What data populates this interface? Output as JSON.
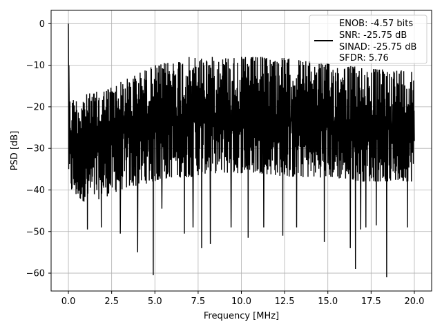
{
  "chart_data": {
    "type": "line",
    "xlabel": "Frequency [MHz]",
    "ylabel": "PSD [dB]",
    "xlim": [
      -1,
      21
    ],
    "ylim": [
      -64.3,
      3.2
    ],
    "grid": true,
    "legend_placement": "top-right",
    "x_ticks": [
      0.0,
      2.5,
      5.0,
      7.5,
      10.0,
      12.5,
      15.0,
      17.5,
      20.0
    ],
    "x_tick_labels": [
      "0.0",
      "2.5",
      "5.0",
      "7.5",
      "10.0",
      "12.5",
      "15.0",
      "17.5",
      "20.0"
    ],
    "y_ticks": [
      0,
      -10,
      -20,
      -30,
      -40,
      -50,
      -60
    ],
    "y_tick_labels": [
      "0",
      "−10",
      "−20",
      "−30",
      "−40",
      "−50",
      "−60"
    ],
    "series": [
      {
        "name": "ENOB: -4.57 bits\nSNR: -25.75 dB\nSINAD: -25.75 dB\nSFDR: 5.76",
        "color": "#000000",
        "x_range": [
          0,
          20
        ],
        "peak": {
          "x": 0.0,
          "y": 0.0
        },
        "envelope": {
          "x": [
            0,
            0.5,
            1,
            2,
            3,
            4,
            5,
            6,
            7,
            8,
            9,
            10,
            11,
            12,
            13,
            14,
            15,
            16,
            17,
            18,
            19,
            20
          ],
          "upper": [
            -18,
            -18,
            -17,
            -16,
            -14,
            -12,
            -10,
            -9,
            -8,
            -8,
            -8,
            -8,
            -8,
            -8,
            -8.5,
            -9,
            -9.5,
            -10,
            -10.5,
            -11,
            -11,
            -11
          ],
          "lower": [
            -40,
            -42,
            -43,
            -42,
            -40,
            -39,
            -38,
            -37,
            -37,
            -36,
            -36,
            -36,
            -36,
            -36.5,
            -37,
            -37,
            -37,
            -37.5,
            -38,
            -38,
            -38,
            -38
          ]
        },
        "deep_notches": [
          {
            "x": 1.1,
            "y": -49.5
          },
          {
            "x": 1.9,
            "y": -49
          },
          {
            "x": 3.0,
            "y": -50.5
          },
          {
            "x": 4.0,
            "y": -55
          },
          {
            "x": 4.9,
            "y": -60.5
          },
          {
            "x": 5.4,
            "y": -44.5
          },
          {
            "x": 6.7,
            "y": -50.5
          },
          {
            "x": 7.2,
            "y": -49
          },
          {
            "x": 7.7,
            "y": -54
          },
          {
            "x": 8.2,
            "y": -53
          },
          {
            "x": 9.4,
            "y": -49
          },
          {
            "x": 10.4,
            "y": -51.5
          },
          {
            "x": 11.3,
            "y": -49
          },
          {
            "x": 12.4,
            "y": -51
          },
          {
            "x": 13.2,
            "y": -49
          },
          {
            "x": 14.8,
            "y": -52.5
          },
          {
            "x": 16.3,
            "y": -54
          },
          {
            "x": 16.6,
            "y": -59
          },
          {
            "x": 16.9,
            "y": -49.5
          },
          {
            "x": 17.2,
            "y": -49
          },
          {
            "x": 17.8,
            "y": -48.5
          },
          {
            "x": 18.4,
            "y": -61
          },
          {
            "x": 19.6,
            "y": -49
          }
        ]
      }
    ],
    "legend": {
      "entries": [
        "ENOB: -4.57 bits",
        "SNR: -25.75 dB",
        "SINAD: -25.75 dB",
        "SFDR: 5.76"
      ]
    }
  }
}
